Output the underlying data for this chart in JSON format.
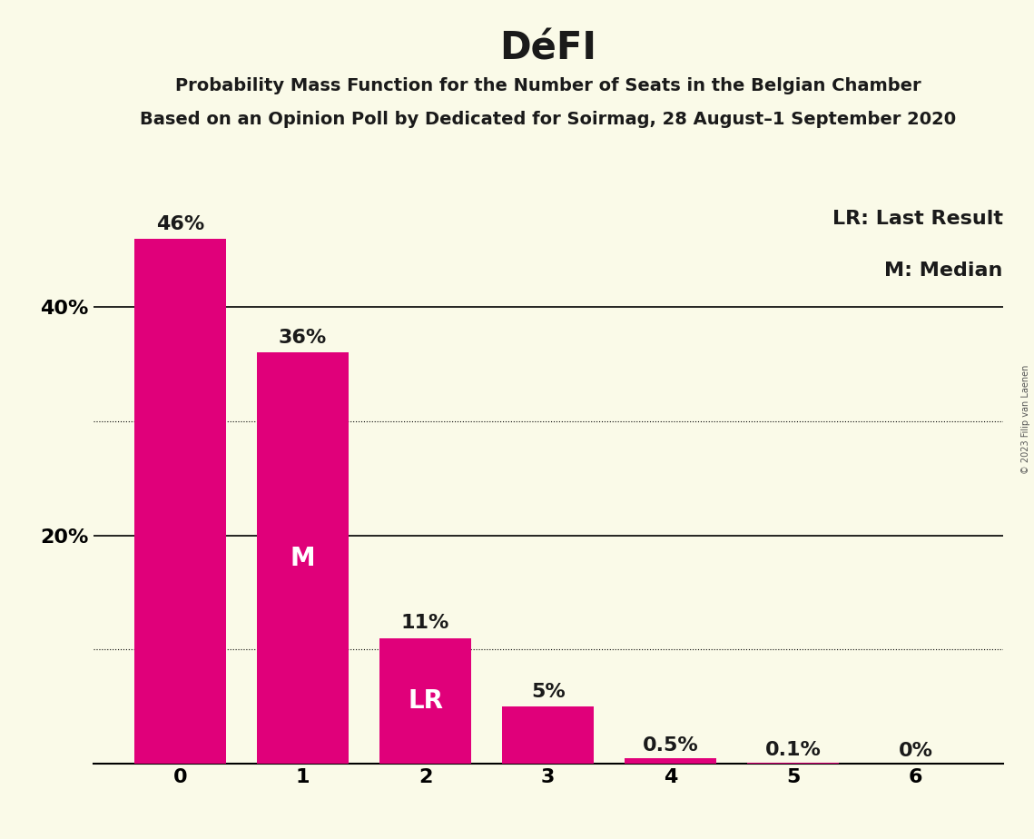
{
  "title": "DéFI",
  "subtitle1": "Probability Mass Function for the Number of Seats in the Belgian Chamber",
  "subtitle2": "Based on an Opinion Poll by Dedicated for Soirmag, 28 August–1 September 2020",
  "copyright": "© 2023 Filip van Laenen",
  "categories": [
    0,
    1,
    2,
    3,
    4,
    5,
    6
  ],
  "values": [
    46,
    36,
    11,
    5,
    0.5,
    0.1,
    0
  ],
  "bar_color": "#E0007A",
  "background_color": "#FAFAE8",
  "bar_labels": [
    "46%",
    "36%",
    "11%",
    "5%",
    "0.5%",
    "0.1%",
    "0%"
  ],
  "median_bar": 1,
  "lr_bar": 2,
  "median_label": "M",
  "lr_label": "LR",
  "legend_lr": "LR: Last Result",
  "legend_m": "M: Median",
  "solid_grid_lines": [
    20,
    40
  ],
  "dotted_grid_lines": [
    10,
    30
  ],
  "ylim": [
    0,
    50
  ],
  "title_fontsize": 30,
  "subtitle_fontsize": 14,
  "bar_label_fontsize": 16,
  "axis_tick_fontsize": 16,
  "legend_fontsize": 16,
  "inner_label_fontsize": 20,
  "inner_label_color": "#FFFFFF",
  "bar_label_color": "#1a1a1a",
  "copyright_fontsize": 7,
  "copyright_color": "#555555"
}
